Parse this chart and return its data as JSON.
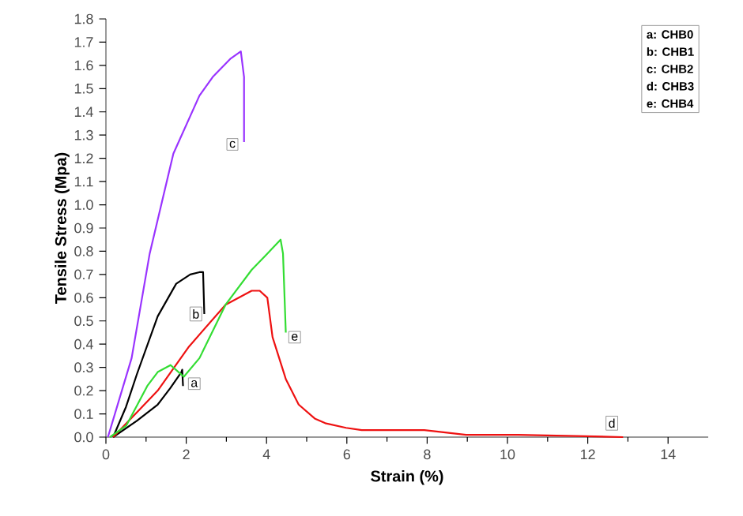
{
  "chart_data": {
    "type": "line",
    "xlabel": "Strain (%)",
    "ylabel": "Tensile Stress (Mpa)",
    "xlim": [
      0,
      15
    ],
    "ylim": [
      0,
      1.8
    ],
    "xticks": [
      0,
      2,
      4,
      6,
      8,
      10,
      12,
      14
    ],
    "yticks": [
      {
        "value": 0,
        "label": "0.0"
      },
      0.1,
      0.2,
      0.3,
      0.4,
      0.5,
      0.6,
      0.7,
      0.8,
      0.9,
      {
        "value": 1,
        "label": "1.0"
      },
      1.1,
      1.2,
      1.3,
      1.4,
      1.5,
      1.6,
      1.7,
      1.8
    ],
    "marker": "none",
    "line_style": "solid",
    "series": [
      {
        "color": "#000000",
        "x": [
          0.18,
          0.77,
          1.29,
          1.6,
          1.88,
          1.9,
          1.92
        ],
        "values": [
          0,
          0.07,
          0.14,
          0.21,
          0.28,
          0.29,
          0.22
        ]
      },
      {
        "color": "#000000",
        "x": [
          0.18,
          0.5,
          0.77,
          1.29,
          1.75,
          2.1,
          2.33,
          2.42,
          2.45
        ],
        "values": [
          0,
          0.13,
          0.27,
          0.52,
          0.66,
          0.7,
          0.71,
          0.71,
          0.53
        ]
      },
      {
        "color": "#9933ff",
        "x": [
          0.05,
          0.64,
          1.09,
          1.68,
          2.33,
          2.66,
          3.11,
          3.36,
          3.44,
          3.44
        ],
        "values": [
          0,
          0.34,
          0.79,
          1.22,
          1.47,
          1.55,
          1.63,
          1.66,
          1.55,
          1.27
        ]
      },
      {
        "color": "#ee1111",
        "x": [
          0.18,
          1.29,
          2.07,
          2.98,
          3.63,
          3.83,
          4.02,
          4.15,
          4.48,
          4.8,
          5.2,
          5.46,
          5.98,
          6.37,
          6.76,
          7.93,
          8.97,
          10.27,
          12.88
        ],
        "values": [
          0,
          0.2,
          0.39,
          0.57,
          0.63,
          0.63,
          0.6,
          0.43,
          0.25,
          0.14,
          0.08,
          0.06,
          0.04,
          0.03,
          0.03,
          0.03,
          0.01,
          0.01,
          0
        ]
      },
      {
        "color": "#33dd33",
        "x": [
          0.1,
          0.51,
          1.03,
          1.29,
          1.61,
          1.81,
          1.94,
          2.33,
          2.98,
          3.63,
          4.02,
          4.35,
          4.41,
          4.48
        ],
        "values": [
          0,
          0.05,
          0.22,
          0.28,
          0.31,
          0.28,
          0.26,
          0.34,
          0.57,
          0.72,
          0.79,
          0.85,
          0.79,
          0.45
        ]
      }
    ],
    "annotations": [
      {
        "text": "a",
        "x": 2.2,
        "y": 0.23
      },
      {
        "text": "b",
        "x": 2.24,
        "y": 0.53
      },
      {
        "text": "c",
        "x": 3.15,
        "y": 1.26
      },
      {
        "text": "d",
        "x": 12.6,
        "y": 0.06
      },
      {
        "text": "e",
        "x": 4.7,
        "y": 0.43
      },
      "a: CHB0",
      "b: CHB1",
      "c: CHB2",
      "d: CHB3",
      "e: CHB4"
    ]
  }
}
